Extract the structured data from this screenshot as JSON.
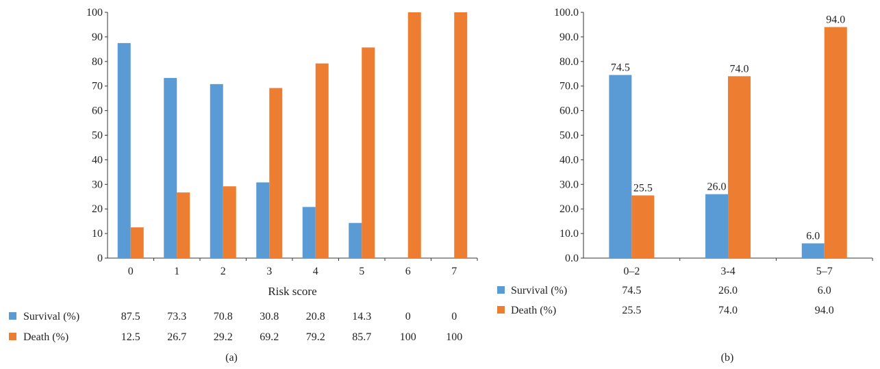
{
  "chart_data": [
    {
      "type": "bar",
      "panel_label": "(a)",
      "xlabel": "Risk score",
      "ylabel": "",
      "ylim": [
        0,
        100
      ],
      "y_ticks": [
        "0",
        "10",
        "20",
        "30",
        "40",
        "50",
        "60",
        "70",
        "80",
        "90",
        "100"
      ],
      "categories": [
        "0",
        "1",
        "2",
        "3",
        "4",
        "5",
        "6",
        "7"
      ],
      "series": [
        {
          "name": "Survival (%)",
          "color": "#5b9bd5",
          "values": [
            87.5,
            73.3,
            70.8,
            30.8,
            20.8,
            14.3,
            0,
            0
          ],
          "table_values": [
            "87.5",
            "73.3",
            "70.8",
            "30.8",
            "20.8",
            "14.3",
            "0",
            "0"
          ]
        },
        {
          "name": "Death (%)",
          "color": "#ed7d31",
          "values": [
            12.5,
            26.7,
            29.2,
            69.2,
            79.2,
            85.7,
            100,
            100
          ],
          "table_values": [
            "12.5",
            "26.7",
            "29.2",
            "69.2",
            "79.2",
            "85.7",
            "100",
            "100"
          ]
        }
      ],
      "legend": "data table below chart",
      "grid": false
    },
    {
      "type": "bar",
      "panel_label": "(b)",
      "xlabel": "",
      "ylabel": "",
      "ylim": [
        0,
        100
      ],
      "y_ticks": [
        "0.0",
        "10.0",
        "20.0",
        "30.0",
        "40.0",
        "50.0",
        "60.0",
        "70.0",
        "80.0",
        "90.0",
        "100.0"
      ],
      "categories": [
        "0–2",
        "3-4",
        "5–7"
      ],
      "series": [
        {
          "name": "Survival (%)",
          "color": "#5b9bd5",
          "values": [
            74.5,
            26.0,
            6.0
          ],
          "table_values": [
            "74.5",
            "26.0",
            "6.0"
          ],
          "data_labels": [
            "74.5",
            "26.0",
            "6.0"
          ]
        },
        {
          "name": "Death (%)",
          "color": "#ed7d31",
          "values": [
            25.5,
            74.0,
            94.0
          ],
          "table_values": [
            "25.5",
            "74.0",
            "94.0"
          ],
          "data_labels": [
            "25.5",
            "74.0",
            "94.0"
          ]
        }
      ],
      "legend": "data table below chart",
      "grid": false
    }
  ]
}
